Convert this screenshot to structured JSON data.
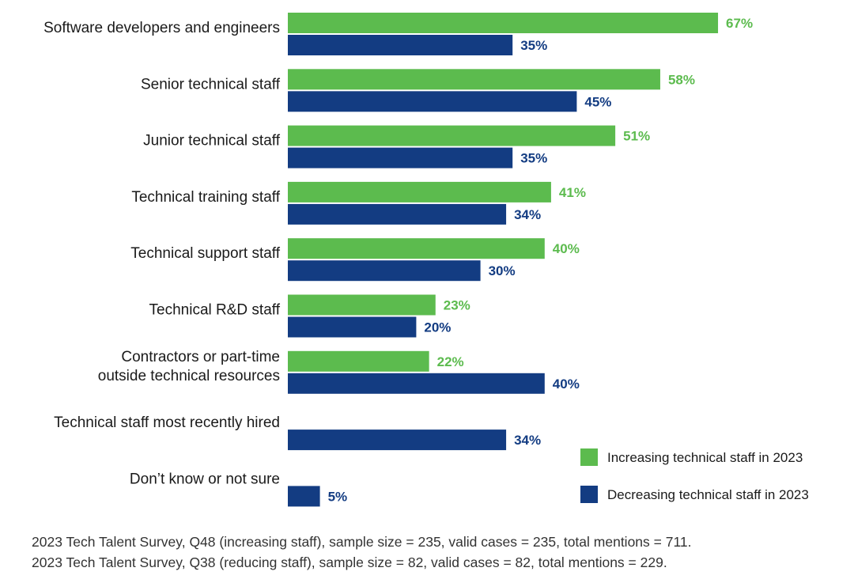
{
  "colors": {
    "increasing": "#5cbb4e",
    "decreasing": "#133c82"
  },
  "chart_data": {
    "type": "bar",
    "orientation": "horizontal",
    "categories": [
      [
        "Software developers and engineers"
      ],
      [
        "Senior technical staff"
      ],
      [
        "Junior technical staff"
      ],
      [
        "Technical training staff"
      ],
      [
        "Technical support staff"
      ],
      [
        "Technical R&D staff"
      ],
      [
        "Contractors or part-time",
        "outside technical resources"
      ],
      [
        "Technical staff most recently hired"
      ],
      [
        "Don’t know or not sure"
      ]
    ],
    "series": [
      {
        "name": "Increasing technical staff in 2023",
        "color_key": "increasing",
        "values": [
          67,
          58,
          51,
          41,
          40,
          23,
          22,
          null,
          null
        ]
      },
      {
        "name": "Decreasing technical staff in 2023",
        "color_key": "decreasing",
        "values": [
          35,
          45,
          35,
          34,
          30,
          20,
          40,
          34,
          5
        ]
      }
    ],
    "value_suffix": "%",
    "xlim": [
      0,
      100
    ],
    "grid": false,
    "legend_position": "bottom-right"
  },
  "footnotes": [
    "2023 Tech Talent Survey, Q48 (increasing staff), sample size = 235, valid cases = 235, total mentions = 711.",
    "2023 Tech Talent Survey, Q38 (reducing staff), sample size = 82, valid cases = 82, total mentions = 229."
  ]
}
